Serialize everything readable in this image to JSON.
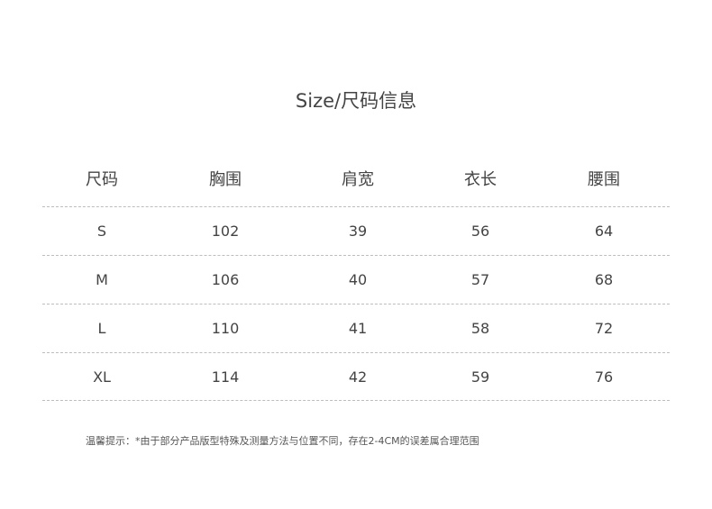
{
  "title": "Size/尺码信息",
  "headers": [
    "尺码",
    "胸围",
    "肩宽",
    "衣长",
    "腰围"
  ],
  "rows": [
    [
      "S",
      "102",
      "39",
      "56",
      "64"
    ],
    [
      "M",
      "106",
      "40",
      "57",
      "68"
    ],
    [
      "L",
      "110",
      "41",
      "58",
      "72"
    ],
    [
      "XL",
      "114",
      "42",
      "59",
      "76"
    ]
  ],
  "note": "温馨提示：*由于部分产品版型特殊及测量方法与位置不同，存在2-4CM的误差属合理范围"
}
